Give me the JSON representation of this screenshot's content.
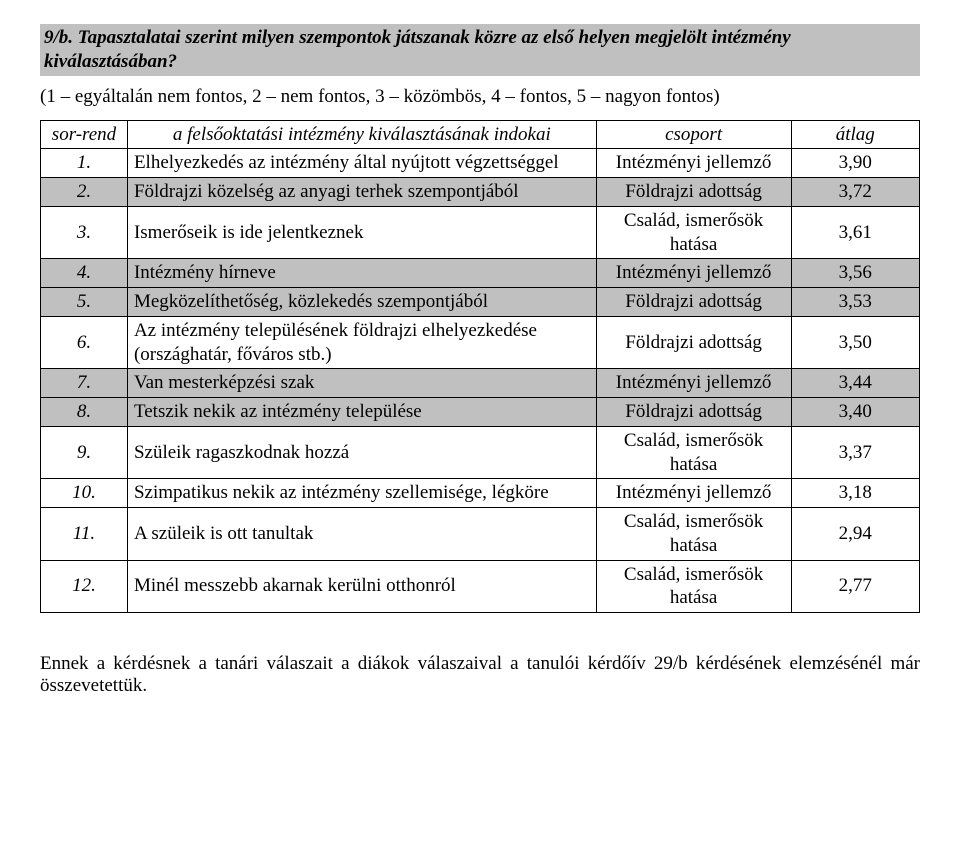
{
  "heading": "9/b. Tapasztalatai szerint milyen szempontok játszanak közre az első helyen megjelölt intézmény kiválasztásában?",
  "scale": "(1 – egyáltalán nem fontos, 2 – nem fontos, 3 – közömbös, 4 – fontos, 5 – nagyon fontos)",
  "columns": {
    "num": "sor-rend",
    "ind": "a felsőoktatási intézmény kiválasztásának indokai",
    "grp": "csoport",
    "avg": "átlag"
  },
  "rows": [
    {
      "n": "1.",
      "ind": "Elhelyezkedés az intézmény által nyújtott végzettséggel",
      "grp": "Intézményi jellemző",
      "avg": "3,90",
      "shade": false
    },
    {
      "n": "2.",
      "ind": "Földrajzi közelség az anyagi terhek szempontjából",
      "grp": "Földrajzi adottság",
      "avg": "3,72",
      "shade": true
    },
    {
      "n": "3.",
      "ind": "Ismerőseik is ide jelentkeznek",
      "grp": "Család, ismerősök hatása",
      "avg": "3,61",
      "shade": false
    },
    {
      "n": "4.",
      "ind": "Intézmény hírneve",
      "grp": "Intézményi jellemző",
      "avg": "3,56",
      "shade": true
    },
    {
      "n": "5.",
      "ind": "Megközelíthetőség, közlekedés szempontjából",
      "grp": "Földrajzi adottság",
      "avg": "3,53",
      "shade": true
    },
    {
      "n": "6.",
      "ind": "Az intézmény településének földrajzi elhelyezkedése (országhatár, főváros stb.)",
      "grp": "Földrajzi adottság",
      "avg": "3,50",
      "shade": false
    },
    {
      "n": "7.",
      "ind": "Van mesterképzési szak",
      "grp": "Intézményi jellemző",
      "avg": "3,44",
      "shade": true
    },
    {
      "n": "8.",
      "ind": "Tetszik nekik az intézmény települése",
      "grp": "Földrajzi adottság",
      "avg": "3,40",
      "shade": true
    },
    {
      "n": "9.",
      "ind": "Szüleik ragaszkodnak hozzá",
      "grp": "Család, ismerősök hatása",
      "avg": "3,37",
      "shade": false
    },
    {
      "n": "10.",
      "ind": "Szimpatikus nekik az intézmény szellemisége, légköre",
      "grp": "Intézményi jellemző",
      "avg": "3,18",
      "shade": false
    },
    {
      "n": "11.",
      "ind": "A szüleik is ott tanultak",
      "grp": "Család, ismerősök hatása",
      "avg": "2,94",
      "shade": false
    },
    {
      "n": "12.",
      "ind": "Minél messzebb akarnak kerülni otthonról",
      "grp": "Család, ismerősök hatása",
      "avg": "2,77",
      "shade": false
    }
  ],
  "footer": "Ennek a kérdésnek a tanári válaszait a diákok válaszaival a tanulói kérdőív 29/b kérdésének elemzésénél már összevetettük."
}
